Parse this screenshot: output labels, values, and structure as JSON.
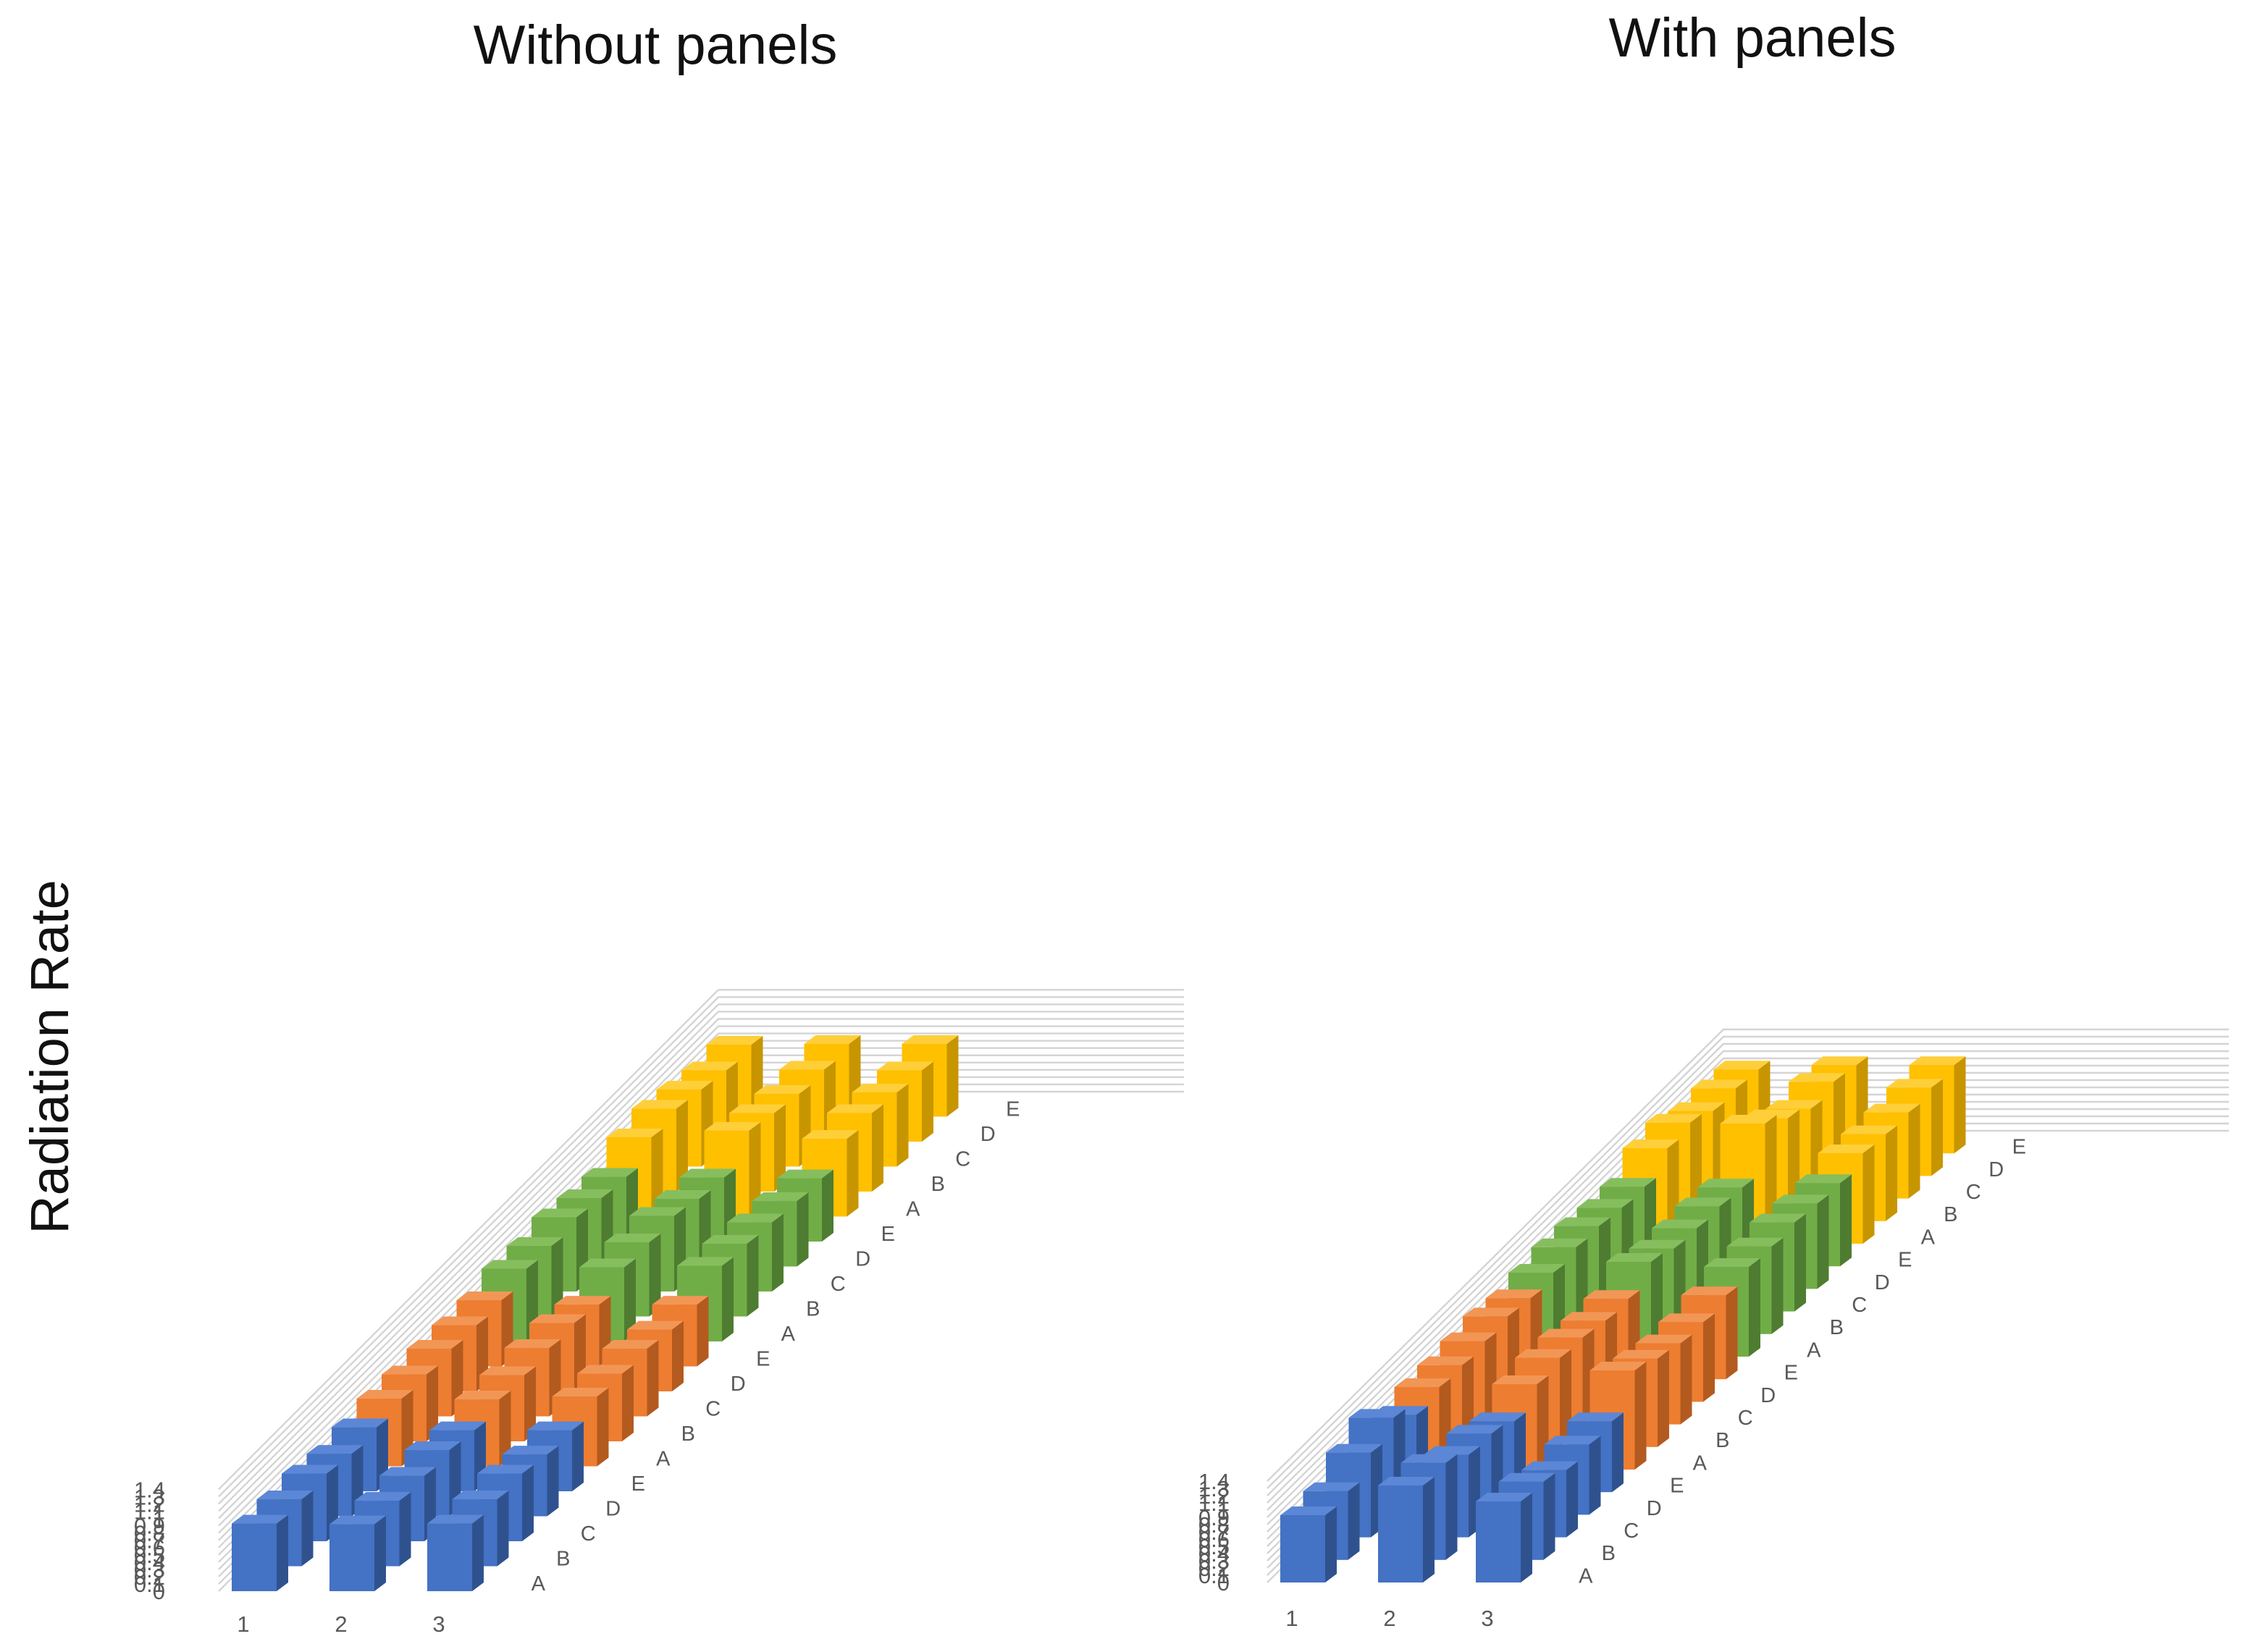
{
  "y_axis_label": "Radiation Rate",
  "colors": {
    "A": {
      "front": "#4472C4",
      "side": "#2F528F",
      "top": "#5B87D6"
    },
    "B": {
      "front": "#ED7D31",
      "side": "#B35A1F",
      "top": "#F29656"
    },
    "C": {
      "front": "#70AD47",
      "side": "#4E7C31",
      "top": "#86BE5E"
    },
    "D": {
      "front": "#FFC000",
      "side": "#C79500",
      "top": "#FFCF3A"
    }
  },
  "chart_data": [
    {
      "type": "bar3d",
      "title": "Without panels",
      "ylabel": "Radiation Rate",
      "ylim": [
        0,
        1.4
      ],
      "y_ticks": [
        "0",
        "0.1",
        "0.2",
        "0.3",
        "0.4",
        "0.5",
        "0.6",
        "0.7",
        "0.8",
        "0.9",
        "1",
        "1.1",
        "1.2",
        "1.3",
        "1.4"
      ],
      "x_categories": [
        "1",
        "2",
        "3"
      ],
      "depth_categories": [
        "A",
        "B",
        "C",
        "D",
        "E",
        "A",
        "B",
        "C",
        "D",
        "E",
        "A",
        "B",
        "C",
        "D",
        "E",
        "A",
        "B",
        "C",
        "D",
        "E"
      ],
      "series": [
        {
          "name": "A",
          "values": [
            [
              0.93,
              0.92,
              0.93
            ],
            [
              0.92,
              0.9,
              0.92
            ],
            [
              0.93,
              0.9,
              0.93
            ],
            [
              0.86,
              0.91,
              0.85
            ],
            [
              0.88,
              0.84,
              0.84
            ]
          ]
        },
        {
          "name": "B",
          "values": [
            [
              0.93,
              0.92,
              0.96
            ],
            [
              0.92,
              0.91,
              0.93
            ],
            [
              0.93,
              0.94,
              0.93
            ],
            [
              0.91,
              0.94,
              0.85
            ],
            [
              0.91,
              0.85,
              0.85
            ]
          ]
        },
        {
          "name": "C",
          "values": [
            [
              1.0,
              1.02,
              1.04
            ],
            [
              0.97,
              1.02,
              1.0
            ],
            [
              1.02,
              1.04,
              0.95
            ],
            [
              0.94,
              0.93,
              0.9
            ],
            [
              0.89,
              0.88,
              0.87
            ]
          ]
        },
        {
          "name": "D",
          "values": [
            [
              1.09,
              1.18,
              1.07
            ],
            [
              1.14,
              1.08,
              1.08
            ],
            [
              1.06,
              1.0,
              1.02
            ],
            [
              0.98,
              0.99,
              0.98
            ],
            [
              0.99,
              1.0,
              1.0
            ]
          ]
        }
      ]
    },
    {
      "type": "bar3d",
      "title": "With panels",
      "ylabel": "Radiation Rate",
      "ylim": [
        0,
        1.4
      ],
      "y_ticks": [
        "0",
        "0.1",
        "0.2",
        "0.3",
        "0.4",
        "0.5",
        "0.6",
        "0.7",
        "0.8",
        "0.9",
        "1",
        "1.1",
        "1.2",
        "1.3",
        "1.4"
      ],
      "x_categories": [
        "1",
        "2",
        "3"
      ],
      "depth_categories": [
        "A",
        "B",
        "C",
        "D",
        "E",
        "A",
        "B",
        "C",
        "D",
        "E",
        "A",
        "B",
        "C",
        "D",
        "E",
        "A",
        "B",
        "C",
        "D",
        "E"
      ],
      "series": [
        {
          "name": "A",
          "values": [
            [
              0.93,
              1.34,
              1.12
            ],
            [
              0.95,
              1.34,
              1.08
            ],
            [
              1.17,
              1.14,
              0.93
            ],
            [
              1.34,
              1.12,
              0.97
            ],
            [
              1.07,
              0.98,
              0.98
            ]
          ]
        },
        {
          "name": "B",
          "values": [
            [
              1.14,
              1.18,
              1.37
            ],
            [
              1.13,
              1.23,
              1.22
            ],
            [
              1.15,
              1.2,
              1.12
            ],
            [
              1.18,
              1.12,
              1.1
            ],
            [
              1.12,
              1.11,
              1.16
            ]
          ]
        },
        {
          "name": "C",
          "values": [
            [
              1.16,
              1.31,
              1.24
            ],
            [
              1.2,
              1.18,
              1.21
            ],
            [
              1.18,
              1.15,
              1.23
            ],
            [
              1.12,
              1.14,
              1.18
            ],
            [
              1.1,
              1.09,
              1.15
            ]
          ]
        },
        {
          "name": "D",
          "values": [
            [
              1.32,
              1.66,
              1.25
            ],
            [
              1.36,
              1.42,
              1.2
            ],
            [
              1.21,
              1.24,
              1.19
            ],
            [
              1.21,
              1.3,
              1.22
            ],
            [
              1.16,
              1.22,
              1.22
            ]
          ]
        }
      ]
    }
  ]
}
